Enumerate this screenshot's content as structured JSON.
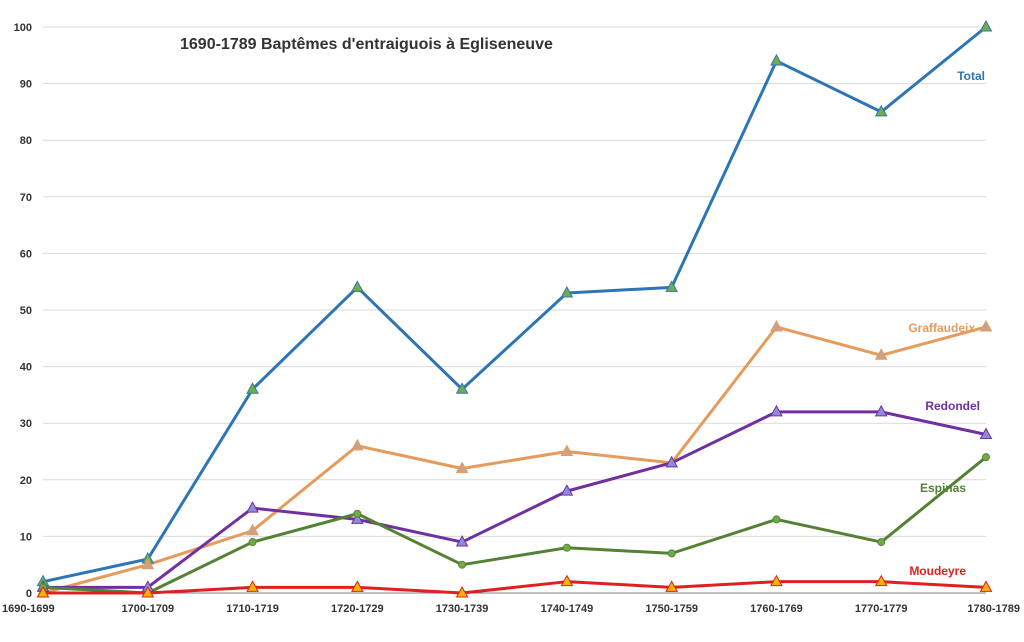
{
  "chart_data": {
    "type": "line",
    "title": "1690-1789 Baptêmes d'entraiguois  à Egliseneuve",
    "xlabel": "",
    "ylabel": "",
    "categories": [
      "1690-1699",
      "1700-1709",
      "1710-1719",
      "1720-1729",
      "1730-1739",
      "1740-1749",
      "1750-1759",
      "1760-1769",
      "1770-1779",
      "1780-1789"
    ],
    "ylim": [
      0,
      100
    ],
    "yticks": [
      0,
      10,
      20,
      30,
      40,
      50,
      60,
      70,
      80,
      90,
      100
    ],
    "grid": true,
    "legend": "inline labels at right",
    "series": [
      {
        "name": "Total",
        "color": "#2e75b6",
        "marker": "triangle",
        "marker_color": "#70ad47",
        "values": [
          2,
          6,
          36,
          54,
          36,
          53,
          54,
          94,
          85,
          100
        ]
      },
      {
        "name": "Graffaudeix",
        "color": "#e59b5c",
        "marker": "triangle",
        "marker_color": "#c9a28a",
        "values": [
          0,
          5,
          11,
          26,
          22,
          25,
          23,
          47,
          42,
          47
        ]
      },
      {
        "name": "Redondel",
        "color": "#7030a0",
        "marker": "triangle",
        "marker_color": "#8e8cd8",
        "values": [
          1,
          1,
          15,
          13,
          9,
          18,
          23,
          32,
          32,
          28
        ]
      },
      {
        "name": "Espinas",
        "color": "#548235",
        "marker": "circle",
        "marker_color": "#70ad47",
        "values": [
          1,
          0,
          9,
          14,
          5,
          8,
          7,
          13,
          9,
          24
        ]
      },
      {
        "name": "Moudeyre",
        "color": "#e02020",
        "marker": "triangle",
        "marker_color": "#f4b400",
        "values": [
          0,
          0,
          1,
          1,
          0,
          2,
          1,
          2,
          2,
          1
        ]
      }
    ]
  }
}
